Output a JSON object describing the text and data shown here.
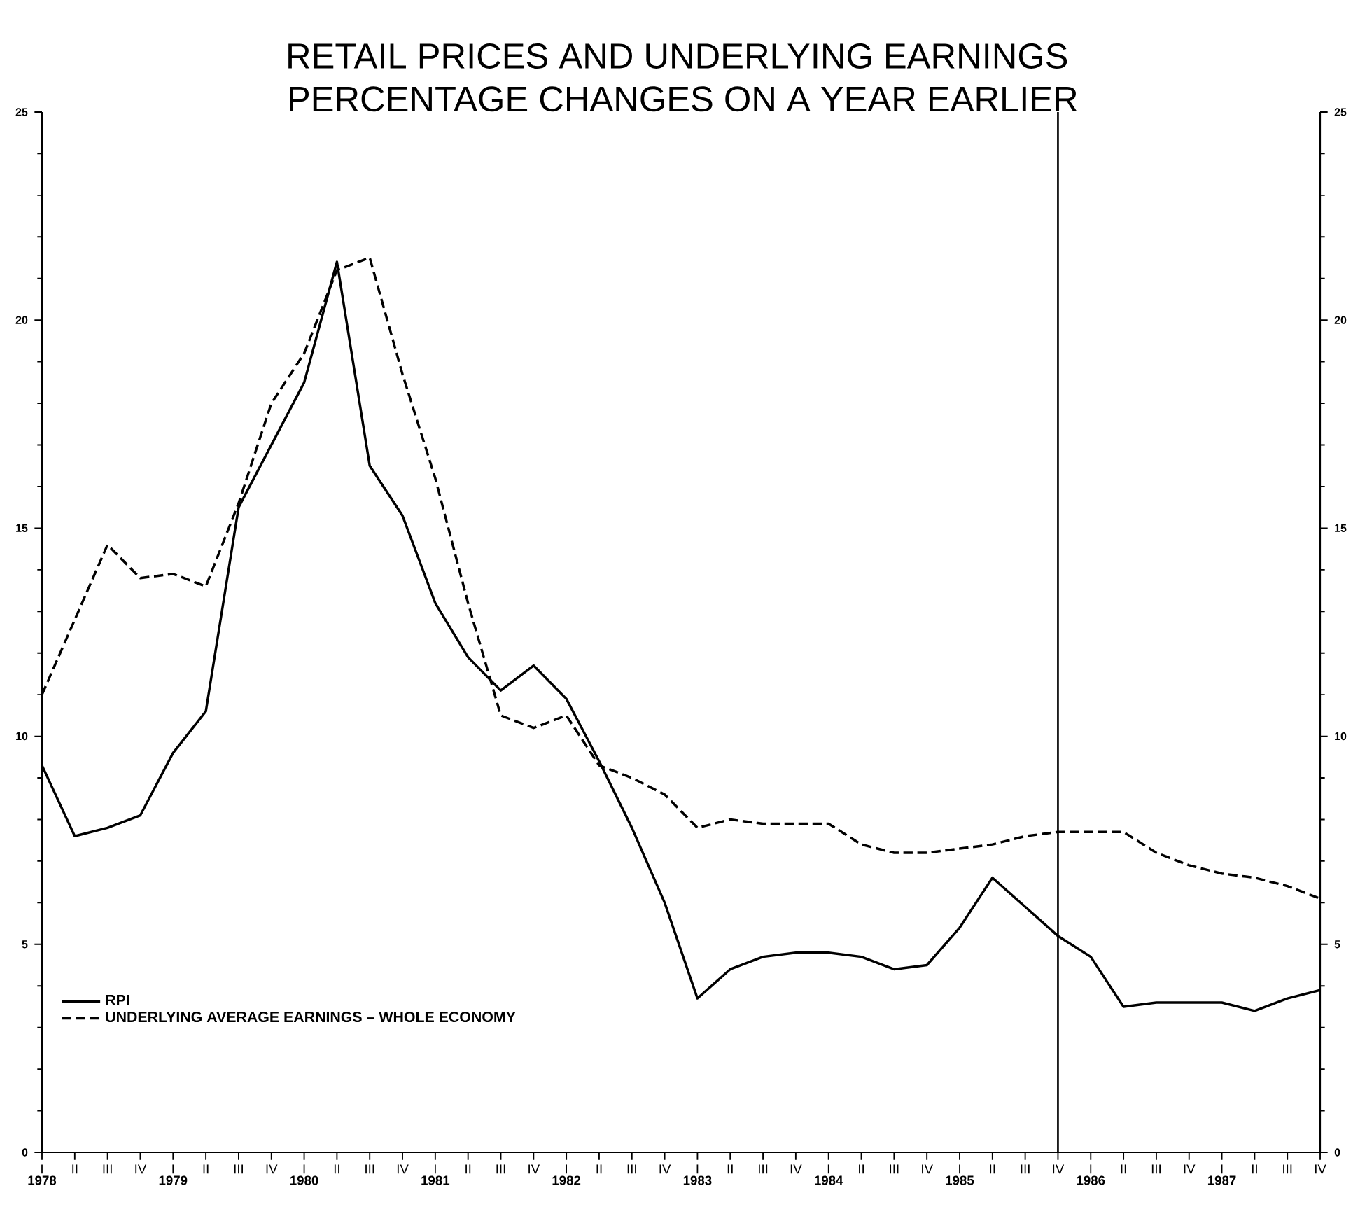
{
  "chart_data": {
    "type": "line",
    "title": "RETAIL PRICES AND UNDERLYING EARNINGS",
    "subtitle": "PERCENTAGE CHANGES ON A YEAR EARLIER",
    "categories": [
      "I",
      "II",
      "III",
      "IV",
      "I",
      "II",
      "III",
      "IV",
      "I",
      "II",
      "III",
      "IV",
      "I",
      "II",
      "III",
      "IV",
      "I",
      "II",
      "III",
      "IV",
      "I",
      "II",
      "III",
      "IV",
      "I",
      "II",
      "III",
      "IV",
      "I",
      "II",
      "III",
      "IV",
      "I",
      "II",
      "III",
      "IV",
      "I",
      "II",
      "III",
      "IV"
    ],
    "series": [
      {
        "name": "RPI",
        "color": "#000000",
        "line_style": "solid",
        "values": [
          9.3,
          7.6,
          7.8,
          8.1,
          9.6,
          10.6,
          15.5,
          17.0,
          18.5,
          21.4,
          16.5,
          15.3,
          13.2,
          11.9,
          11.1,
          11.7,
          10.9,
          9.4,
          7.8,
          6.0,
          3.7,
          4.4,
          4.7,
          4.8,
          4.8,
          4.7,
          4.4,
          4.5,
          5.4,
          6.6,
          5.9,
          5.2,
          4.7,
          3.5,
          3.6,
          3.6,
          3.6,
          3.4,
          3.7,
          3.9
        ]
      },
      {
        "name": "UNDERLYING AVERAGE EARNINGS – WHOLE ECONOMY",
        "color": "#000000",
        "line_style": "dashed",
        "values": [
          11.0,
          12.8,
          14.6,
          13.8,
          13.9,
          13.6,
          15.6,
          18.0,
          19.2,
          21.2,
          21.5,
          18.7,
          16.2,
          13.2,
          10.5,
          10.2,
          10.5,
          9.3,
          9.0,
          8.6,
          7.8,
          8.0,
          7.9,
          7.9,
          7.9,
          7.4,
          7.2,
          7.2,
          7.3,
          7.4,
          7.6,
          7.7,
          7.7,
          7.7,
          7.2,
          6.9,
          6.7,
          6.6,
          6.4,
          6.1
        ]
      }
    ],
    "x2lim": [
      1978,
      1987.75
    ],
    "x2ticks": [
      1978,
      1979,
      1980,
      1981,
      1982,
      1983,
      1984,
      1985,
      1986,
      1987
    ],
    "ylim": [
      0,
      25
    ],
    "yticks": [
      0,
      5,
      10,
      15,
      20,
      25
    ],
    "y2lim": [
      0,
      25
    ],
    "y2ticks": [
      0,
      5,
      10,
      15,
      20,
      25
    ],
    "ref_lines": [
      {
        "axis": "x2",
        "value": 1985.75,
        "color": "#000000"
      }
    ],
    "legend": "bottom left"
  }
}
